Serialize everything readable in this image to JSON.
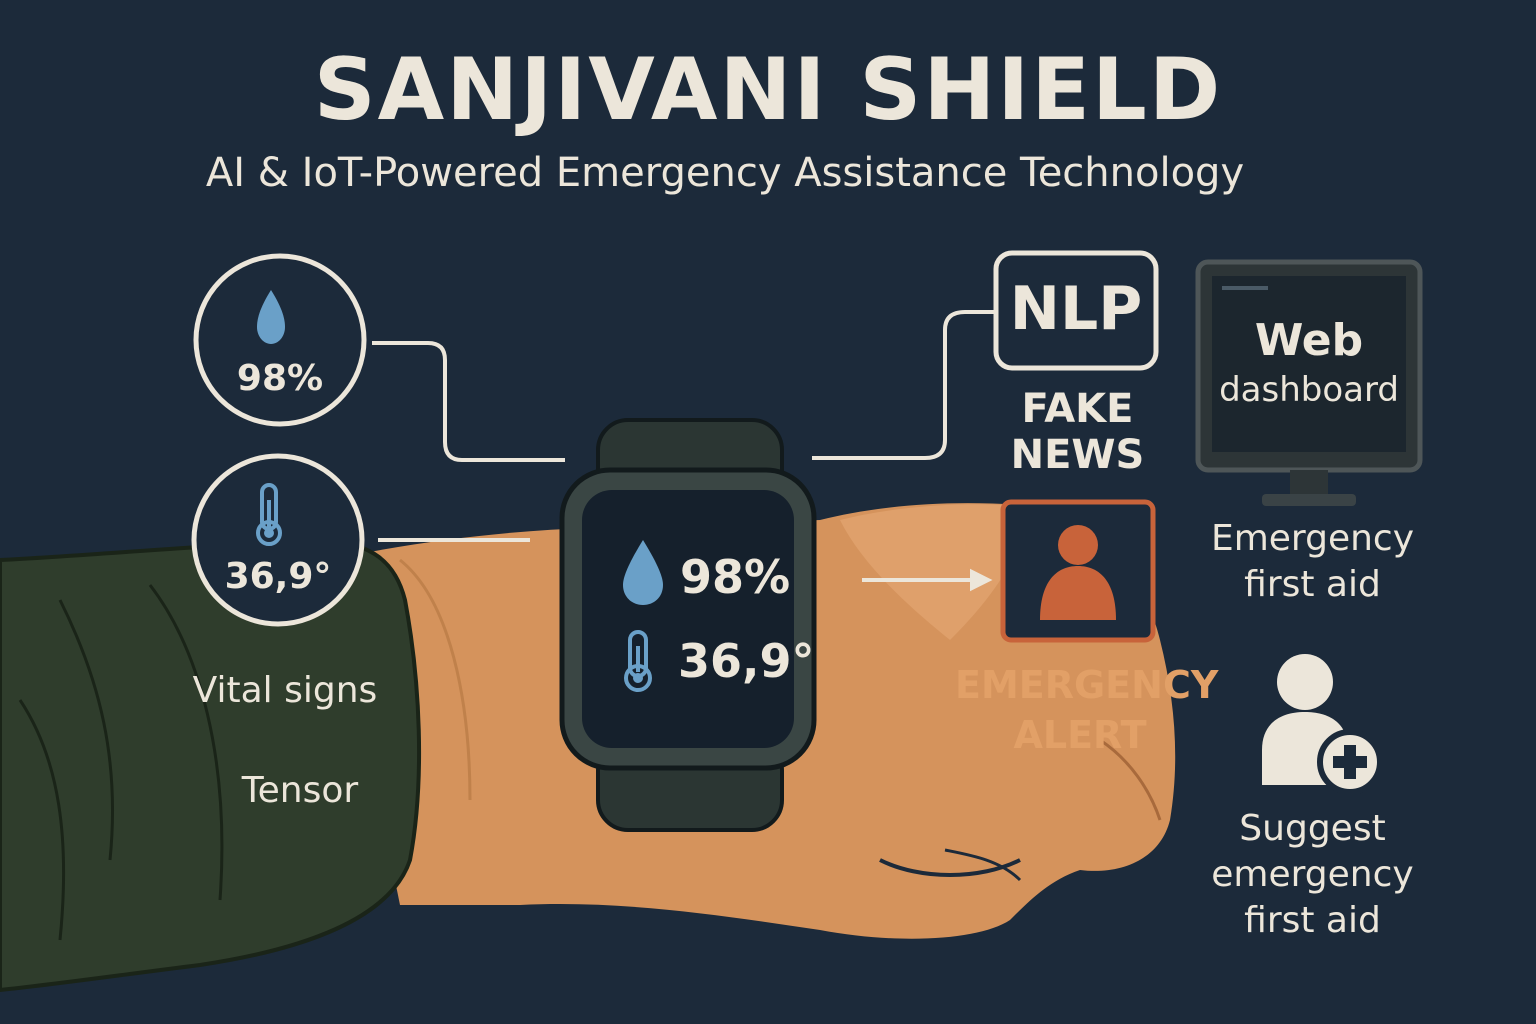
{
  "title": "SANJIVANI SHIELD",
  "subtitle": "AI & IoT-Powered Emergency Assistance Technology",
  "vitals": {
    "oxygen_value": "98%",
    "temperature_value": "36,9°",
    "label": "Vital signs",
    "sensor_label": "Tensor"
  },
  "watch": {
    "oxygen_value": "98%",
    "temperature_value": "36,9°"
  },
  "nlp": {
    "label": "NLP",
    "caption_line1": "FAKE",
    "caption_line2": "NEWS"
  },
  "alert": {
    "line1": "EMERGENCY",
    "line2": "ALERT"
  },
  "dashboard": {
    "title": "Web",
    "subtitle": "dashboard",
    "caption_line1": "Emergency",
    "caption_line2": "first aid"
  },
  "first_aid": {
    "line1": "Suggest",
    "line2": "emergency",
    "line3": "first aid"
  },
  "colors": {
    "background": "#1c2a3a",
    "sleeve": "#2f3d2c",
    "skin": "#d5935c",
    "alert": "#c8633a",
    "drop": "#6aa0c8",
    "text": "#ece6da"
  },
  "icons": [
    "drop-icon",
    "thermometer-icon",
    "person-alert-icon",
    "monitor-icon",
    "user-plus-icon",
    "arrow-icon"
  ]
}
